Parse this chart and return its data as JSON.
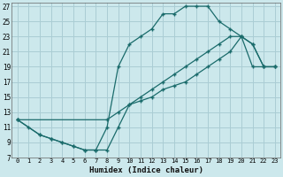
{
  "xlabel": "Humidex (Indice chaleur)",
  "bg_color": "#cce8ec",
  "grid_color": "#aacdd4",
  "line_color": "#1a6b6b",
  "xlim": [
    -0.5,
    23.5
  ],
  "ylim": [
    7,
    27.5
  ],
  "xticks": [
    0,
    1,
    2,
    3,
    4,
    5,
    6,
    7,
    8,
    9,
    10,
    11,
    12,
    13,
    14,
    15,
    16,
    17,
    18,
    19,
    20,
    21,
    22,
    23
  ],
  "yticks": [
    7,
    9,
    11,
    13,
    15,
    17,
    19,
    21,
    23,
    25,
    27
  ],
  "curve1_x": [
    0,
    1,
    2,
    3,
    4,
    5,
    6,
    7,
    8,
    9,
    10,
    11,
    12,
    13,
    14,
    15,
    16,
    17,
    18,
    19,
    20,
    21,
    22,
    23
  ],
  "curve1_y": [
    12,
    11,
    10,
    9.5,
    9,
    8.5,
    8,
    8,
    11,
    19,
    22,
    23,
    24,
    26,
    26,
    27,
    27,
    27,
    25,
    24,
    23,
    19,
    19,
    19
  ],
  "curve2_x": [
    0,
    2,
    3,
    4,
    5,
    6,
    7,
    8,
    9,
    10,
    11,
    12,
    13,
    14,
    15,
    16,
    17,
    18,
    19,
    20,
    21,
    22,
    23
  ],
  "curve2_y": [
    12,
    10,
    9.5,
    9,
    8.5,
    8,
    8,
    8,
    11,
    14,
    15,
    16,
    17,
    18,
    19,
    20,
    21,
    22,
    23,
    23,
    22,
    19,
    19
  ],
  "curve3_x": [
    0,
    8,
    9,
    10,
    11,
    12,
    13,
    14,
    15,
    16,
    17,
    18,
    19,
    20,
    21,
    22,
    23
  ],
  "curve3_y": [
    12,
    12,
    13,
    14,
    14.5,
    15,
    16,
    16.5,
    17,
    18,
    19,
    20,
    21,
    23,
    22,
    19,
    19
  ]
}
